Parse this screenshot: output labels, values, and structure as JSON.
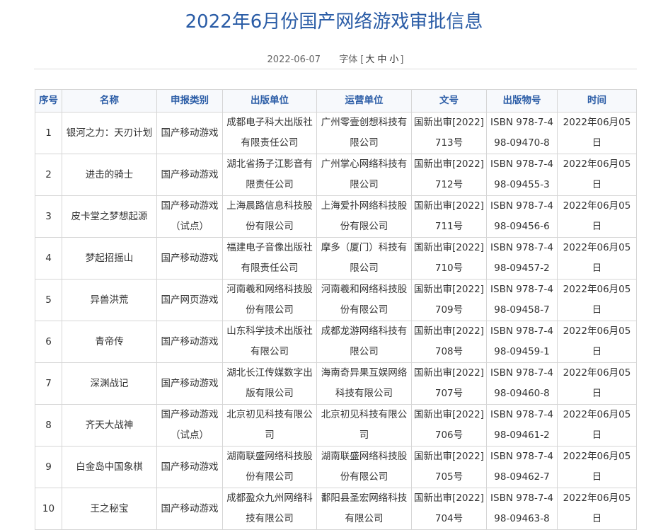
{
  "title": "2022年6月份国产网络游戏审批信息",
  "date": "2022-06-07",
  "font_label": "字体",
  "font_sizes": [
    "大",
    "中",
    "小"
  ],
  "headers": [
    "序号",
    "名称",
    "申报类别",
    "出版单位",
    "运营单位",
    "文号",
    "出版物号",
    "时间"
  ],
  "rows": [
    [
      "1",
      "银河之力：天刃计划",
      "国产移动游戏",
      "成都电子科大出版社有限责任公司",
      "广州零壹创想科技有限公司",
      "国新出审[2022]713号",
      "ISBN 978-7-498-09470-8",
      "2022年06月05日"
    ],
    [
      "2",
      "进击的骑士",
      "国产移动游戏",
      "湖北省扬子江影音有限责任公司",
      "广州掌心网络科技有限公司",
      "国新出审[2022]712号",
      "ISBN 978-7-498-09455-3",
      "2022年06月05日"
    ],
    [
      "3",
      "皮卡堂之梦想起源",
      "国产移动游戏（试点）",
      "上海晨路信息科技股份有限公司",
      "上海爱扑网络科技股份有限公司",
      "国新出审[2022]711号",
      "ISBN 978-7-498-09456-6",
      "2022年06月05日"
    ],
    [
      "4",
      "梦起招摇山",
      "国产移动游戏",
      "福建电子音像出版社有限责任公司",
      "摩多（厦门）科技有限公司",
      "国新出审[2022]710号",
      "ISBN 978-7-498-09457-2",
      "2022年06月05日"
    ],
    [
      "5",
      "异兽洪荒",
      "国产网页游戏",
      "河南羲和网络科技股份有限公司",
      "河南羲和网络科技股份有限公司",
      "国新出审[2022]709号",
      "ISBN 978-7-498-09458-7",
      "2022年06月05日"
    ],
    [
      "6",
      "青帝传",
      "国产移动游戏",
      "山东科学技术出版社有限公司",
      "成都龙游网络科技有限公司",
      "国新出审[2022]708号",
      "ISBN 978-7-498-09459-1",
      "2022年06月05日"
    ],
    [
      "7",
      "深渊战记",
      "国产移动游戏",
      "湖北长江传媒数字出版有限公司",
      "海南奇异果互娱网络科技有限公司",
      "国新出审[2022]707号",
      "ISBN 978-7-498-09460-8",
      "2022年06月05日"
    ],
    [
      "8",
      "齐天大战神",
      "国产移动游戏（试点）",
      "北京初见科技有限公司",
      "北京初见科技有限公司",
      "国新出审[2022]706号",
      "ISBN 978-7-498-09461-2",
      "2022年06月05日"
    ],
    [
      "9",
      "白金岛中国象棋",
      "国产移动游戏",
      "湖南联盛网络科技股份有限公司",
      "湖南联盛网络科技股份有限公司",
      "国新出审[2022]705号",
      "ISBN 978-7-498-09462-7",
      "2022年06月05日"
    ],
    [
      "10",
      "王之秘宝",
      "国产移动游戏",
      "成都盈众九州网络科技有限公司",
      "鄱阳县圣宏网络科技有限公司",
      "国新出审[2022]704号",
      "ISBN 978-7-498-09463-8",
      "2022年06月05日"
    ]
  ]
}
